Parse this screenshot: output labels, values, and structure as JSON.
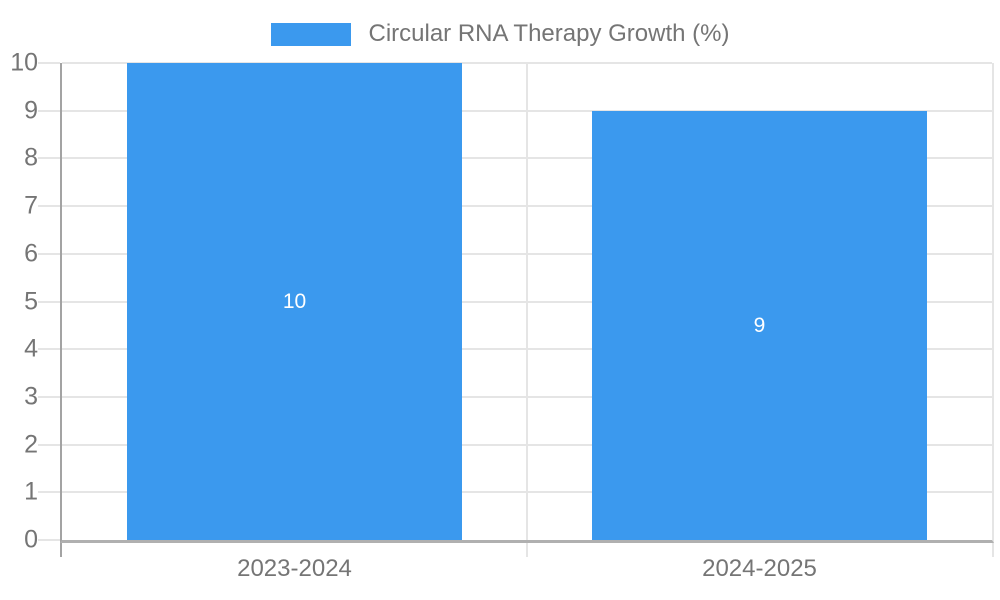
{
  "chart_data": {
    "type": "bar",
    "title": "Circular RNA Therapy Growth (%)",
    "categories": [
      "2023-2024",
      "2024-2025"
    ],
    "values": [
      10,
      9
    ],
    "value_labels": [
      "10",
      "9"
    ],
    "xlabel": "",
    "ylabel": "",
    "ylim": [
      0,
      10
    ],
    "ytick_step": 1,
    "ytick_labels": [
      "0",
      "1",
      "2",
      "3",
      "4",
      "5",
      "6",
      "7",
      "8",
      "9",
      "10"
    ],
    "grid": true,
    "legend_position": "top-center",
    "series": [
      {
        "name": "Circular RNA Therapy Growth (%)",
        "values": [
          10,
          9
        ]
      }
    ]
  },
  "colors": {
    "bar": "#3b99ee",
    "gridline": "#e5e5e5",
    "axis_line": "#a3a3a3",
    "baseline": "#b0b0b0",
    "text": "#757575",
    "value_label": "#ffffff",
    "background": "#ffffff"
  }
}
